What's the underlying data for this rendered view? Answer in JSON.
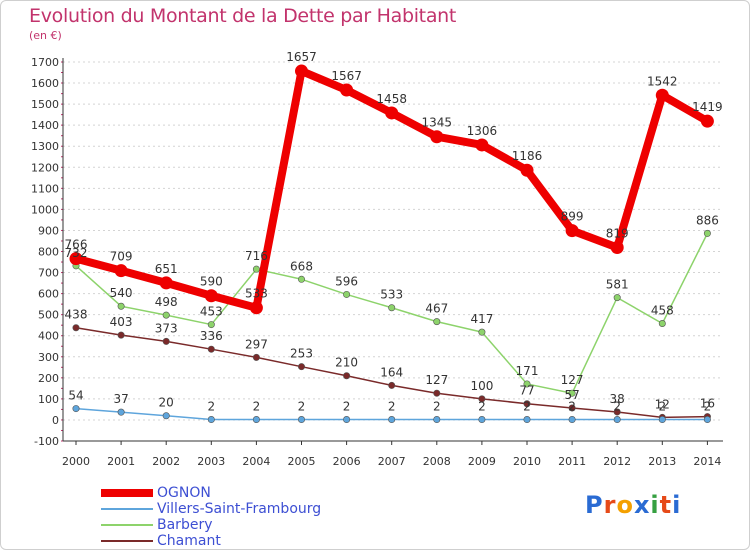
{
  "title": "Evolution du Montant de la Dette par Habitant",
  "subtitle": "(en €)",
  "logo": {
    "text": "Proxiti",
    "colors": [
      "#2a6bd3",
      "#e64a19",
      "#f4a000",
      "#2a6bd3",
      "#36a041",
      "#e64a19",
      "#2a6bd3"
    ]
  },
  "chart_data": {
    "type": "line",
    "title": "Evolution du Montant de la Dette par Habitant",
    "ylabel": "(en €)",
    "xlabel": "",
    "x": [
      "2000",
      "2001",
      "2002",
      "2003",
      "2004",
      "2005",
      "2006",
      "2007",
      "2008",
      "2009",
      "2010",
      "2011",
      "2012",
      "2013",
      "2014"
    ],
    "ylim": [
      -100,
      1700
    ],
    "yticks": [
      -100,
      0,
      100,
      200,
      300,
      400,
      500,
      600,
      700,
      800,
      900,
      1000,
      1100,
      1200,
      1300,
      1400,
      1500,
      1600,
      1700
    ],
    "grid": true,
    "legend": "bottom-left",
    "series": [
      {
        "name": "OGNON",
        "color": "#ee0000",
        "values": [
          766,
          709,
          651,
          590,
          533,
          1657,
          1567,
          1458,
          1345,
          1306,
          1186,
          899,
          819,
          1542,
          1419
        ]
      },
      {
        "name": "Villers-Saint-Frambourg",
        "color": "#5ea5dc",
        "values": [
          54,
          37,
          20,
          2,
          2,
          2,
          2,
          2,
          2,
          2,
          2,
          2,
          2,
          2,
          2
        ]
      },
      {
        "name": "Barbery",
        "color": "#8dd36b",
        "values": [
          732,
          540,
          498,
          453,
          716,
          668,
          596,
          533,
          467,
          417,
          171,
          127,
          581,
          458,
          886
        ]
      },
      {
        "name": "Chamant",
        "color": "#7a2a2a",
        "values": [
          438,
          403,
          373,
          336,
          297,
          253,
          210,
          164,
          127,
          100,
          77,
          57,
          38,
          12,
          16
        ]
      }
    ],
    "data_labels": [
      [
        "766",
        "709",
        "651",
        "590",
        "533",
        "1657",
        "1567",
        "1458",
        "1345",
        "1306",
        "1186",
        "899",
        "819",
        "1542",
        "1419"
      ],
      [
        "54",
        "37",
        "20",
        "2",
        "2",
        "2",
        "2",
        "2",
        "2",
        "2",
        "2",
        "2",
        "2",
        "2",
        "2"
      ],
      [
        "732",
        "540",
        "498",
        "453",
        "716",
        "668",
        "596",
        "533",
        "467",
        "417",
        "171",
        "127",
        "581",
        "458",
        "886"
      ],
      [
        "438",
        "403",
        "373",
        "336",
        "297",
        "253",
        "210",
        "164",
        "127",
        "100",
        "77",
        "57",
        "38",
        "12",
        "16"
      ]
    ]
  }
}
